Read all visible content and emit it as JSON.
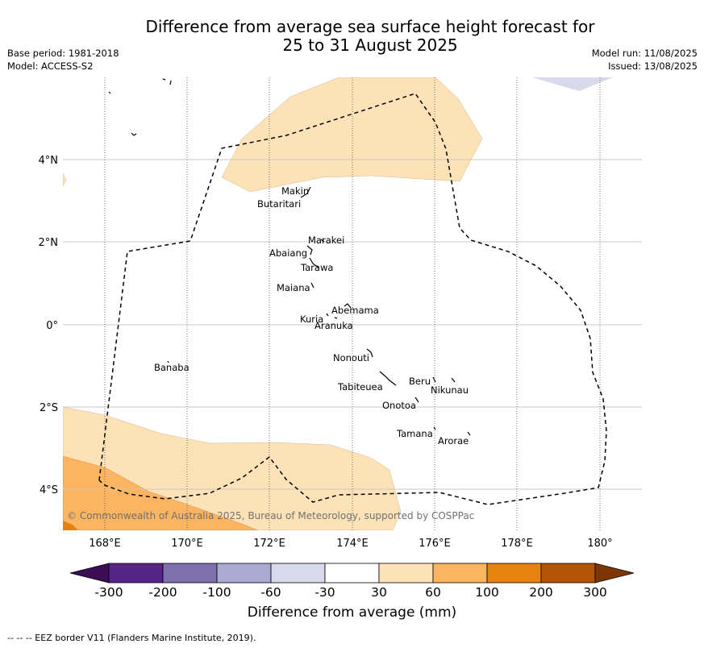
{
  "title_line1": "Difference from average sea surface height forecast for",
  "title_line2": "25 to 31 August 2025",
  "meta_left": {
    "line1": "Base period: 1981-2018",
    "line2": "Model: ACCESS-S2"
  },
  "meta_right": {
    "line1": "Model run: 11/08/2025",
    "line2": "Issued: 13/08/2025"
  },
  "copyright": "© Commonwealth of Australia 2025, Bureau of Meteorology, supported by COSPPac",
  "lon_labels": [
    "168°E",
    "170°E",
    "172°E",
    "174°E",
    "176°E",
    "178°E",
    "180°"
  ],
  "lat_labels": [
    "4°N",
    "2°N",
    "0°",
    "2°S",
    "4°S"
  ],
  "islands": [
    {
      "name": "Makin"
    },
    {
      "name": "Butaritari"
    },
    {
      "name": "Marakei"
    },
    {
      "name": "Abaiang"
    },
    {
      "name": "Tarawa"
    },
    {
      "name": "Maiana"
    },
    {
      "name": "Abemama"
    },
    {
      "name": "Kuria"
    },
    {
      "name": "Aranuka"
    },
    {
      "name": "Banaba"
    },
    {
      "name": "Nonouti"
    },
    {
      "name": "Beru"
    },
    {
      "name": "Nikunau"
    },
    {
      "name": "Tabiteuea"
    },
    {
      "name": "Onotoa"
    },
    {
      "name": "Tamana"
    },
    {
      "name": "Arorae"
    }
  ],
  "colorbar": {
    "title": "Difference from average (mm)",
    "tick_labels": [
      "-300",
      "-200",
      "-100",
      "-60",
      "-30",
      "30",
      "60",
      "100",
      "200",
      "300"
    ],
    "colors": [
      "#3c0c55",
      "#552586",
      "#7e70ab",
      "#aca9d1",
      "#d9d9ec",
      "#ffffff",
      "#fde2b8",
      "#fbb462",
      "#e4830f",
      "#b25507",
      "#7d3604"
    ]
  },
  "legend_footer": "--  --  -- EEZ border V11 (Flanders Marine Institute, 2019)."
}
